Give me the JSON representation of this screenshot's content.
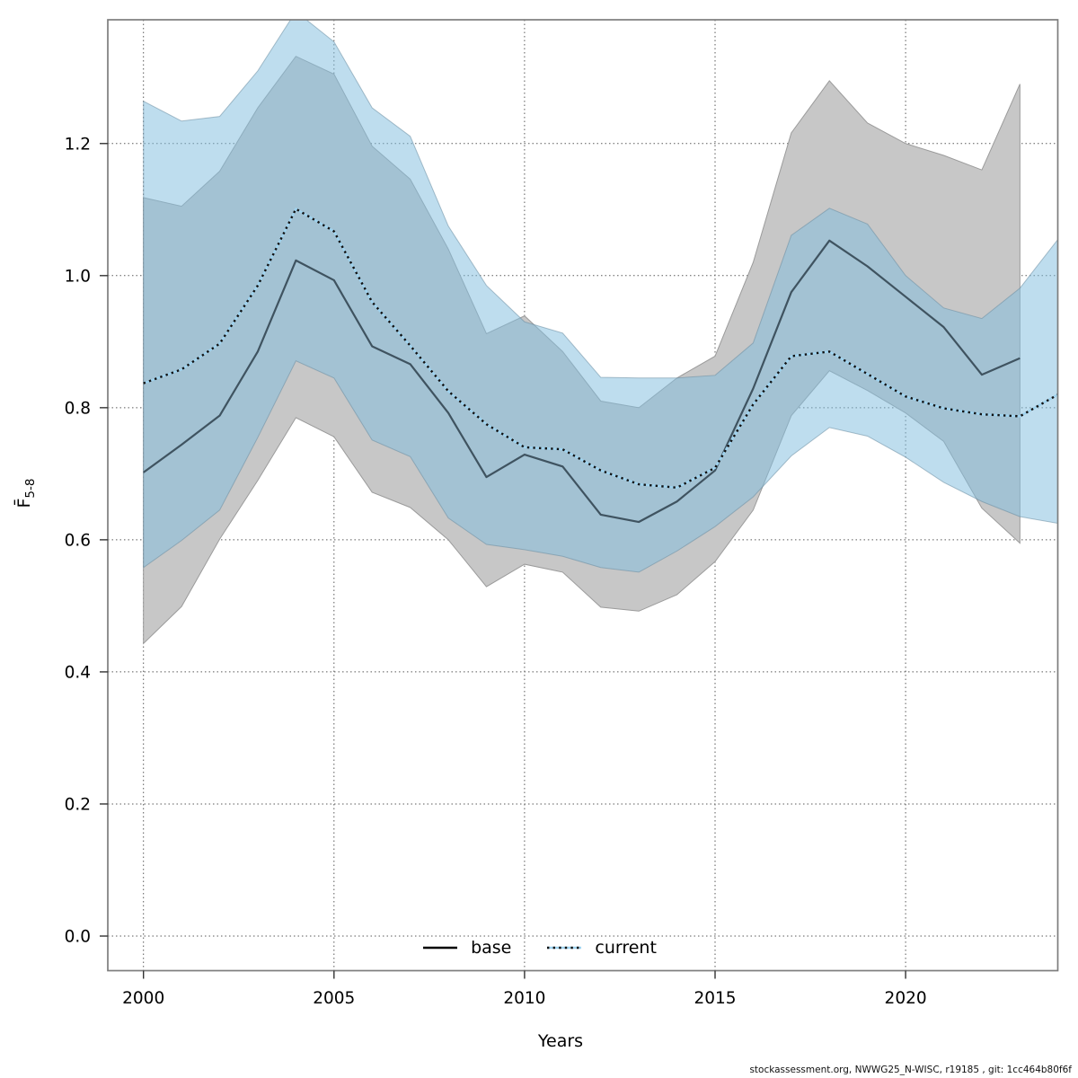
{
  "figure": {
    "y_axis_label_main": "F̄",
    "y_axis_label_sub": "5-8",
    "x_axis_label": "Years",
    "footer_text": "stockassessment.org, NWWG25_N-WISC, r19185 , git: 1cc464b80f6f"
  },
  "legend": {
    "items": [
      {
        "label": "base",
        "style": "solid"
      },
      {
        "label": "current",
        "style": "dotted"
      }
    ]
  },
  "colors": {
    "base_line": "#3f5360",
    "base_band_fill": "#c7c7c7",
    "base_band_stroke": "#9b9b9b",
    "current_line_under": "#9fd3ef",
    "current_line_dots": "#111111",
    "current_band_fill": "rgba(130,190,222,0.52)",
    "current_band_stroke": "rgba(105,140,160,0.55)",
    "grid": "#5a5a5a",
    "box": "#7d7d7d",
    "tick": "#333333",
    "legend_base_sample": "#000000",
    "text": "#000000"
  },
  "chart_data": {
    "type": "line",
    "title": "",
    "xlabel": "Years",
    "ylabel": "Fbar(5-8)",
    "xlim": [
      1999.06,
      2024.0
    ],
    "ylim": [
      -0.052,
      1.387
    ],
    "grid": true,
    "legend_position": "bottom-center-inside",
    "x_ticks": [
      {
        "label": "2000",
        "value": 2000
      },
      {
        "label": "2005",
        "value": 2005
      },
      {
        "label": "2010",
        "value": 2010
      },
      {
        "label": "2015",
        "value": 2015
      },
      {
        "label": "2020",
        "value": 2020
      }
    ],
    "y_ticks": [
      {
        "label": "0.0",
        "value": 0.0
      },
      {
        "label": "0.2",
        "value": 0.2
      },
      {
        "label": "0.4",
        "value": 0.4
      },
      {
        "label": "0.6",
        "value": 0.6
      },
      {
        "label": "0.8",
        "value": 0.8
      },
      {
        "label": "1.0",
        "value": 1.0
      },
      {
        "label": "1.2",
        "value": 1.2
      }
    ],
    "series": [
      {
        "name": "base",
        "line_style": "solid",
        "years": [
          2000,
          2001,
          2002,
          2003,
          2004,
          2005,
          2006,
          2007,
          2008,
          2009,
          2010,
          2011,
          2012,
          2013,
          2014,
          2015,
          2016,
          2017,
          2018,
          2019,
          2020,
          2021,
          2022,
          2023
        ],
        "values": [
          0.702,
          0.744,
          0.788,
          0.885,
          1.023,
          0.993,
          0.893,
          0.866,
          0.792,
          0.695,
          0.729,
          0.711,
          0.638,
          0.627,
          0.658,
          0.705,
          0.829,
          0.975,
          1.053,
          1.014,
          0.968,
          0.922,
          0.85,
          0.875
        ],
        "ci_low": [
          0.443,
          0.499,
          0.601,
          0.69,
          0.785,
          0.756,
          0.672,
          0.649,
          0.6,
          0.529,
          0.563,
          0.551,
          0.498,
          0.492,
          0.517,
          0.567,
          0.645,
          0.788,
          0.856,
          0.826,
          0.792,
          0.749,
          0.648,
          0.595
        ],
        "ci_high": [
          1.118,
          1.105,
          1.158,
          1.254,
          1.332,
          1.305,
          1.196,
          1.146,
          1.04,
          0.912,
          0.939,
          0.885,
          0.81,
          0.8,
          0.845,
          0.878,
          1.02,
          1.216,
          1.295,
          1.231,
          1.2,
          1.182,
          1.16,
          1.29
        ]
      },
      {
        "name": "current",
        "line_style": "dotted",
        "years": [
          2000,
          2001,
          2002,
          2003,
          2004,
          2005,
          2006,
          2007,
          2008,
          2009,
          2010,
          2011,
          2012,
          2013,
          2014,
          2015,
          2016,
          2017,
          2018,
          2019,
          2020,
          2021,
          2022,
          2023,
          2024
        ],
        "values": [
          0.837,
          0.858,
          0.897,
          0.985,
          1.101,
          1.067,
          0.96,
          0.894,
          0.825,
          0.775,
          0.74,
          0.737,
          0.705,
          0.684,
          0.679,
          0.709,
          0.805,
          0.878,
          0.885,
          0.851,
          0.817,
          0.799,
          0.79,
          0.787,
          0.82
        ],
        "ci_low": [
          0.558,
          0.599,
          0.645,
          0.755,
          0.871,
          0.845,
          0.751,
          0.726,
          0.633,
          0.593,
          0.585,
          0.575,
          0.558,
          0.551,
          0.583,
          0.62,
          0.665,
          0.727,
          0.77,
          0.757,
          0.725,
          0.687,
          0.658,
          0.635,
          0.625
        ],
        "ci_high": [
          1.264,
          1.234,
          1.241,
          1.31,
          1.4,
          1.354,
          1.254,
          1.211,
          1.075,
          0.985,
          0.93,
          0.913,
          0.846,
          0.845,
          0.845,
          0.849,
          0.898,
          1.061,
          1.102,
          1.078,
          1.0,
          0.951,
          0.935,
          0.981,
          1.055
        ]
      }
    ]
  }
}
